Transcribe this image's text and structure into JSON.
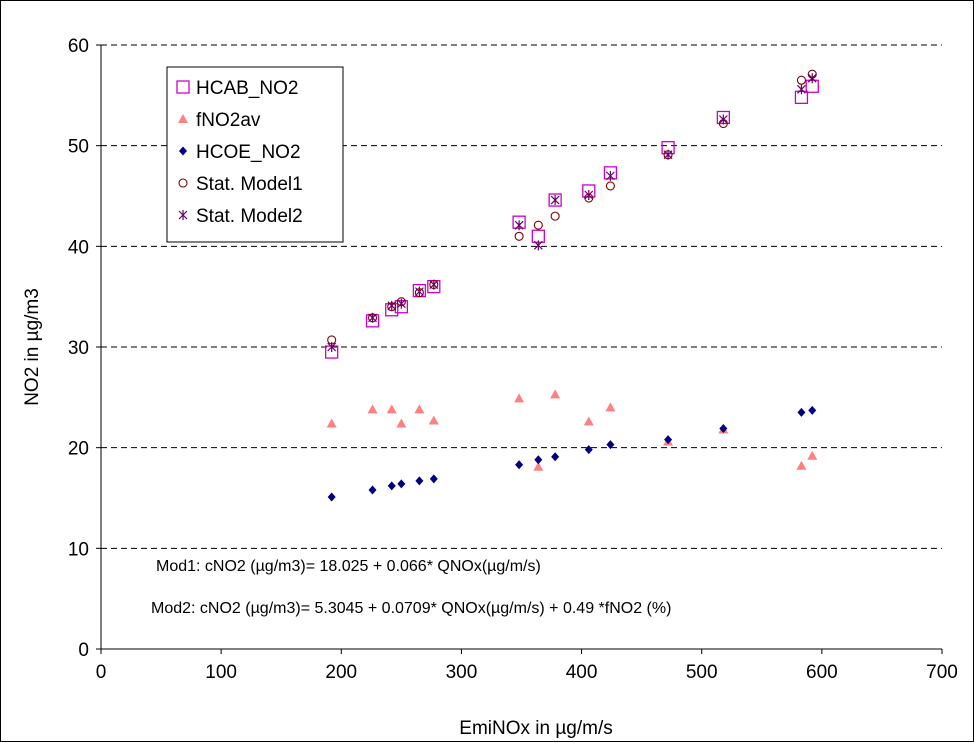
{
  "chart_data": {
    "type": "scatter",
    "title": "",
    "xlabel": "EmiNOx in µg/m/s",
    "ylabel": "NO2 in µg/m3",
    "xlim": [
      0,
      700
    ],
    "ylim": [
      0,
      60
    ],
    "xticks": [
      0,
      100,
      200,
      300,
      400,
      500,
      600,
      700
    ],
    "yticks": [
      0,
      10,
      20,
      30,
      40,
      50,
      60
    ],
    "grid": "horizontal dashed",
    "legend_position": "top-left",
    "series": [
      {
        "name": "HCAB_NO2",
        "marker": "square-open",
        "color": "#CC00CC",
        "points": [
          [
            192,
            29.5
          ],
          [
            226,
            32.6
          ],
          [
            242,
            33.7
          ],
          [
            250,
            34.0
          ],
          [
            265,
            35.6
          ],
          [
            277,
            36.0
          ],
          [
            348,
            42.4
          ],
          [
            364,
            41.0
          ],
          [
            378,
            44.6
          ],
          [
            406,
            45.5
          ],
          [
            424,
            47.3
          ],
          [
            472,
            49.8
          ],
          [
            518,
            52.8
          ],
          [
            583,
            54.8
          ],
          [
            592,
            55.9
          ]
        ]
      },
      {
        "name": "fNO2av",
        "marker": "triangle",
        "color": "#FF8080",
        "points": [
          [
            192,
            22.4
          ],
          [
            226,
            23.8
          ],
          [
            242,
            23.8
          ],
          [
            250,
            22.4
          ],
          [
            265,
            23.8
          ],
          [
            277,
            22.7
          ],
          [
            348,
            24.9
          ],
          [
            364,
            18.1
          ],
          [
            378,
            25.3
          ],
          [
            406,
            22.6
          ],
          [
            424,
            24.0
          ],
          [
            472,
            20.6
          ],
          [
            518,
            21.8
          ],
          [
            583,
            18.2
          ],
          [
            592,
            19.2
          ]
        ]
      },
      {
        "name": "HCOE_NO2",
        "marker": "diamond",
        "color": "#000080",
        "points": [
          [
            192,
            15.1
          ],
          [
            226,
            15.8
          ],
          [
            242,
            16.2
          ],
          [
            250,
            16.4
          ],
          [
            265,
            16.7
          ],
          [
            277,
            16.9
          ],
          [
            348,
            18.3
          ],
          [
            364,
            18.8
          ],
          [
            378,
            19.1
          ],
          [
            406,
            19.8
          ],
          [
            424,
            20.3
          ],
          [
            472,
            20.8
          ],
          [
            518,
            21.9
          ],
          [
            583,
            23.5
          ],
          [
            592,
            23.7
          ]
        ]
      },
      {
        "name": "Stat. Model1",
        "marker": "circle-open",
        "color": "#800000",
        "points": [
          [
            192,
            30.7
          ],
          [
            226,
            32.9
          ],
          [
            242,
            34.0
          ],
          [
            250,
            34.5
          ],
          [
            265,
            35.4
          ],
          [
            277,
            36.2
          ],
          [
            348,
            41.0
          ],
          [
            364,
            42.1
          ],
          [
            378,
            43.0
          ],
          [
            406,
            44.8
          ],
          [
            424,
            46.0
          ],
          [
            472,
            49.1
          ],
          [
            518,
            52.2
          ],
          [
            583,
            56.5
          ],
          [
            592,
            57.1
          ]
        ]
      },
      {
        "name": "Stat. Model2",
        "marker": "star",
        "color": "#660066",
        "points": [
          [
            192,
            30.0
          ],
          [
            226,
            32.9
          ],
          [
            242,
            34.1
          ],
          [
            250,
            34.3
          ],
          [
            265,
            35.5
          ],
          [
            277,
            36.2
          ],
          [
            348,
            42.1
          ],
          [
            364,
            40.1
          ],
          [
            378,
            44.6
          ],
          [
            406,
            45.1
          ],
          [
            424,
            47.0
          ],
          [
            472,
            49.1
          ],
          [
            518,
            52.6
          ],
          [
            583,
            55.6
          ],
          [
            592,
            56.7
          ]
        ]
      }
    ],
    "annotations": [
      "Mod1: cNO2 (µg/m3)= 18.025 + 0.066* QNOx(µg/m/s)",
      "Mod2: cNO2 (µg/m3)= 5.3045 + 0.0709* QNOx(µg/m/s) + 0.49 *fNO2 (%)"
    ]
  }
}
